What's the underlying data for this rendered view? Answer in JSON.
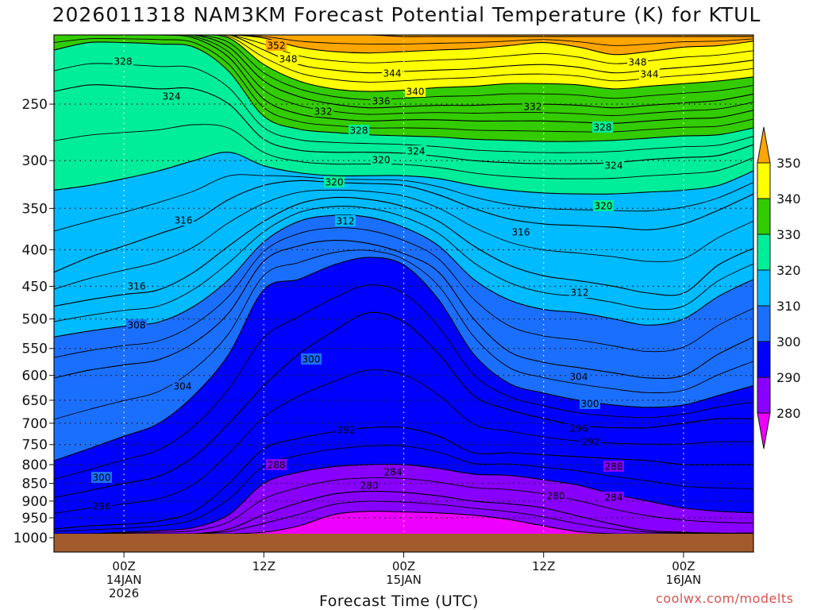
{
  "chart_data": {
    "type": "heatmap",
    "title": "2026011318 NAM3KM Forecast Potential Temperature (K) for KTUL",
    "xlabel": "Forecast Time (UTC)",
    "ylabel": "",
    "credit": "coolwx.com/modelts",
    "y_ticks": [
      "250",
      "300",
      "350",
      "400",
      "450",
      "500",
      "550",
      "600",
      "650",
      "700",
      "750",
      "800",
      "850",
      "900",
      "950",
      "1000"
    ],
    "x_ticks": [
      {
        "hour": 6,
        "label": "00Z",
        "sub1": "14JAN",
        "sub2": "2026"
      },
      {
        "hour": 18,
        "label": "12Z",
        "sub1": "",
        "sub2": ""
      },
      {
        "hour": 30,
        "label": "00Z",
        "sub1": "15JAN",
        "sub2": ""
      },
      {
        "hour": 42,
        "label": "12Z",
        "sub1": "",
        "sub2": ""
      },
      {
        "hour": 54,
        "label": "00Z",
        "sub1": "16JAN",
        "sub2": ""
      }
    ],
    "x_range_hours": [
      0,
      60
    ],
    "p_range_hpa": [
      200,
      1000
    ],
    "colorbar": {
      "levels": [
        "350",
        "340",
        "330",
        "320",
        "310",
        "300",
        "290",
        "280"
      ],
      "colors": [
        "#ffa500",
        "#ffff00",
        "#33cc00",
        "#00ee99",
        "#00bbff",
        "#1b6fff",
        "#0000ff",
        "#8800ff",
        "#ee00ff"
      ]
    },
    "contour_labels": [
      "352",
      "348",
      "348",
      "344",
      "344",
      "340",
      "336",
      "332",
      "332",
      "328",
      "328",
      "328",
      "324",
      "324",
      "324",
      "320",
      "320",
      "320",
      "316",
      "316",
      "316",
      "312",
      "312",
      "308",
      "304",
      "304",
      "300",
      "300",
      "300",
      "296",
      "296",
      "292",
      "292",
      "288",
      "288",
      "284",
      "284",
      "280",
      "280"
    ],
    "isentropes": [
      {
        "theta": 352,
        "p": [
          200,
          200,
          200,
          200,
          200,
          200,
          200,
          200,
          200,
          200,
          201,
          201,
          201,
          201,
          201,
          201,
          201,
          201,
          201,
          201,
          201
        ]
      },
      {
        "theta": 348,
        "p": [
          200,
          200,
          200,
          200,
          200,
          200,
          202,
          208,
          211,
          212,
          211,
          210,
          209,
          207,
          205,
          208,
          213,
          211,
          208,
          207,
          204
        ]
      },
      {
        "theta": 344,
        "p": [
          200,
          200,
          200,
          200,
          200,
          200,
          210,
          220,
          224,
          226,
          225,
          224,
          223,
          221,
          220,
          222,
          226,
          224,
          222,
          220,
          217
        ]
      },
      {
        "theta": 340,
        "p": [
          200,
          200,
          200,
          200,
          200,
          202,
          220,
          232,
          238,
          240,
          239,
          237,
          236,
          234,
          234,
          235,
          238,
          236,
          234,
          232,
          229
        ]
      },
      {
        "theta": 336,
        "p": [
          200,
          200,
          200,
          200,
          200,
          208,
          232,
          244,
          250,
          253,
          252,
          251,
          251,
          250,
          250,
          251,
          253,
          251,
          249,
          247,
          242
        ]
      },
      {
        "theta": 332,
        "p": [
          200,
          200,
          200,
          200,
          202,
          215,
          246,
          258,
          262,
          264,
          263,
          263,
          264,
          264,
          264,
          265,
          266,
          264,
          262,
          261,
          255
        ]
      },
      {
        "theta": 328,
        "p": [
          210,
          205,
          205,
          206,
          208,
          225,
          260,
          271,
          274,
          276,
          277,
          278,
          280,
          281,
          282,
          282,
          281,
          279,
          277,
          276,
          270
        ]
      },
      {
        "theta": 324,
        "p": [
          240,
          235,
          236,
          238,
          238,
          250,
          280,
          290,
          292,
          292,
          293,
          296,
          300,
          302,
          303,
          303,
          302,
          299,
          297,
          295,
          285
        ]
      },
      {
        "theta": 320,
        "p": [
          330,
          325,
          318,
          310,
          300,
          292,
          305,
          312,
          315,
          315,
          315,
          318,
          325,
          330,
          333,
          334,
          334,
          332,
          330,
          325,
          310
        ]
      },
      {
        "theta": 316,
        "p": [
          430,
          410,
          395,
          380,
          365,
          340,
          325,
          320,
          322,
          323,
          325,
          335,
          350,
          362,
          368,
          370,
          372,
          375,
          368,
          352,
          334
        ]
      },
      {
        "theta": 312,
        "p": [
          480,
          470,
          462,
          455,
          430,
          395,
          365,
          345,
          338,
          340,
          348,
          365,
          395,
          420,
          435,
          442,
          450,
          460,
          460,
          420,
          398
        ]
      },
      {
        "theta": 308,
        "p": [
          530,
          520,
          512,
          505,
          480,
          440,
          390,
          365,
          358,
          360,
          372,
          395,
          440,
          470,
          485,
          490,
          500,
          510,
          500,
          465,
          440
        ]
      },
      {
        "theta": 304,
        "p": [
          605,
          590,
          580,
          570,
          540,
          490,
          415,
          395,
          388,
          392,
          405,
          430,
          500,
          555,
          575,
          585,
          595,
          605,
          600,
          560,
          530
        ]
      },
      {
        "theta": 300,
        "p": [
          790,
          760,
          730,
          700,
          640,
          560,
          455,
          440,
          420,
          410,
          420,
          470,
          560,
          615,
          635,
          650,
          660,
          665,
          660,
          640,
          620
        ]
      },
      {
        "theta": 296,
        "p": [
          890,
          870,
          850,
          830,
          780,
          700,
          620,
          560,
          520,
          490,
          505,
          560,
          640,
          670,
          690,
          705,
          710,
          710,
          700,
          690,
          690
        ]
      },
      {
        "theta": 292,
        "p": [
          985,
          975,
          970,
          960,
          930,
          850,
          760,
          735,
          720,
          710,
          710,
          730,
          770,
          770,
          775,
          780,
          785,
          790,
          800,
          800,
          800
        ]
      },
      {
        "theta": 288,
        "p": [
          1000,
          1000,
          995,
          990,
          980,
          940,
          850,
          820,
          805,
          800,
          800,
          810,
          825,
          828,
          840,
          855,
          880,
          900,
          920,
          930,
          935
        ]
      },
      {
        "theta": 284,
        "p": [
          1000,
          1000,
          1000,
          1000,
          1000,
          985,
          940,
          905,
          880,
          872,
          875,
          885,
          900,
          908,
          920,
          945,
          970,
          990,
          995,
          998,
          998
        ]
      },
      {
        "theta": 280,
        "p": [
          1000,
          1000,
          1000,
          1000,
          1000,
          1000,
          995,
          975,
          940,
          930,
          932,
          935,
          942,
          955,
          975,
          993,
          1000,
          1000,
          1000,
          1000,
          1000
        ]
      }
    ]
  }
}
